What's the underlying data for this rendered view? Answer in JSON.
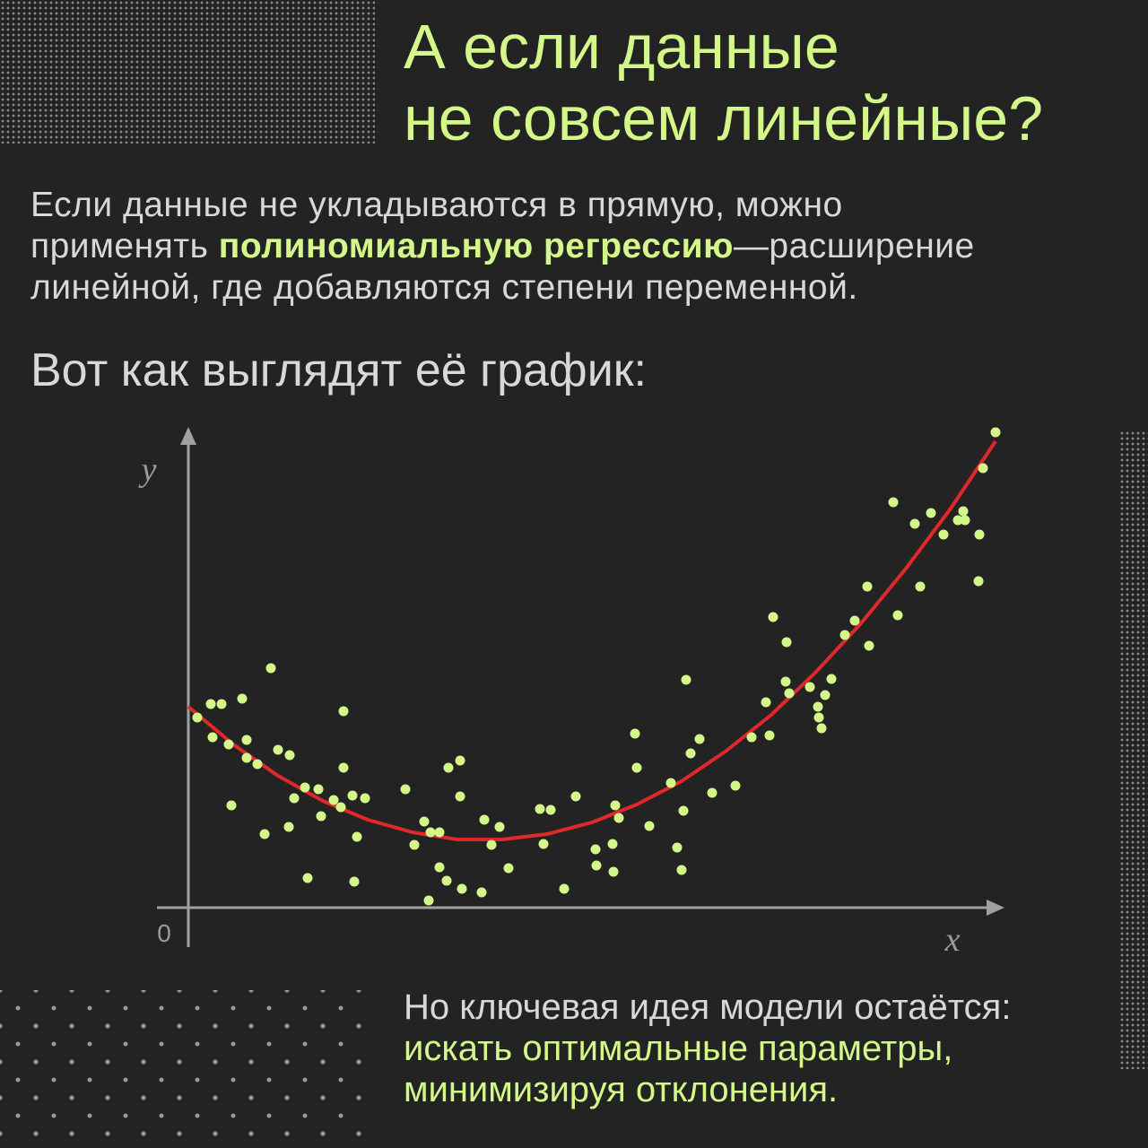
{
  "header": {
    "title_lines": [
      "А если данные",
      "не совсем линейные?"
    ]
  },
  "intro": {
    "lines": [
      [
        {
          "text": "Если данные не укладываются в прямую, можно"
        }
      ],
      [
        {
          "text": "применять "
        },
        {
          "text": "полиномиальную регрессию",
          "highlight": true
        },
        {
          "text": "—расширение"
        }
      ],
      [
        {
          "text": "линейной, где добавляются степени переменной."
        }
      ]
    ]
  },
  "subheading": "Вот как выглядят её график:",
  "chart_data": {
    "type": "scatter",
    "xlabel": "x",
    "ylabel": "y",
    "xlim": [
      0,
      90.8
    ],
    "ylim": [
      0,
      53.4
    ],
    "xticks": [
      0
    ],
    "series": [
      {
        "type": "line",
        "color": "#e0282b",
        "x": [
          0,
          5,
          10,
          15,
          20,
          25,
          30,
          35,
          40,
          45,
          50,
          55,
          60,
          65,
          70,
          75,
          80,
          85,
          90
        ],
        "values": [
          22.4,
          18.2,
          14.7,
          11.9,
          9.8,
          8.4,
          7.6,
          7.6,
          8.2,
          9.5,
          11.5,
          14.1,
          17.5,
          21.5,
          26.3,
          31.7,
          37.8,
          44.5,
          52.0
        ]
      },
      {
        "type": "scatter",
        "color": "#d4f78a",
        "x": [
          1.0,
          2.5,
          3.7,
          6.0,
          9.2,
          2.7,
          4.5,
          6.5,
          6.5,
          7.7,
          10.0,
          11.3,
          4.8,
          8.5,
          11.2,
          11.8,
          13.0,
          14.5,
          14.8,
          13.3,
          16.2,
          17.0,
          17.3,
          17.3,
          18.3,
          19.7,
          18.8,
          18.5,
          24.2,
          25.2,
          26.3,
          27.0,
          28.0,
          28.0,
          26.8,
          28.8,
          29.0,
          30.3,
          30.3,
          30.5,
          32.7,
          33.0,
          33.8,
          34.7,
          35.7,
          39.2,
          40.4,
          39.6,
          41.9,
          43.2,
          45.4,
          45.5,
          47.3,
          47.4,
          47.6,
          48.0,
          49.8,
          50.0,
          51.4,
          53.8,
          54.5,
          55.0,
          55.2,
          55.5,
          56.0,
          57.0,
          58.4,
          61.0,
          62.8,
          64.4,
          64.8,
          65.2,
          66.6,
          66.7,
          67.0,
          69.3,
          70.2,
          70.3,
          70.6,
          71.0,
          71.7,
          73.2,
          74.3,
          75.7,
          75.9,
          78.6,
          79.1,
          81.0,
          81.6,
          82.8,
          84.2,
          85.8,
          86.4,
          86.6,
          88.2,
          88.1,
          88.6,
          90.0
        ],
        "values": [
          21.2,
          22.7,
          22.7,
          23.3,
          26.7,
          19.0,
          18.2,
          18.7,
          16.7,
          16.0,
          17.6,
          17.0,
          11.4,
          8.2,
          9.0,
          12.2,
          13.4,
          13.2,
          10.2,
          3.3,
          12.0,
          11.2,
          21.9,
          15.6,
          12.5,
          12.2,
          7.9,
          2.9,
          13.2,
          7.0,
          9.6,
          8.4,
          8.4,
          4.5,
          0.8,
          3.0,
          15.6,
          16.4,
          12.4,
          2.1,
          1.7,
          9.8,
          7.0,
          9.0,
          4.4,
          11.0,
          10.9,
          7.1,
          2.1,
          12.4,
          6.5,
          4.7,
          7.1,
          4.0,
          11.4,
          10.0,
          19.4,
          15.6,
          9.1,
          13.9,
          6.7,
          4.2,
          10.8,
          25.4,
          17.2,
          18.8,
          12.8,
          13.6,
          19.0,
          22.9,
          19.2,
          32.4,
          25.2,
          29.6,
          23.9,
          24.6,
          22.4,
          21.2,
          20.0,
          23.7,
          25.5,
          30.4,
          32.0,
          35.8,
          29.2,
          45.2,
          32.6,
          42.8,
          35.8,
          44.0,
          41.6,
          43.2,
          44.2,
          43.2,
          41.6,
          36.4,
          49.0,
          53.0
        ]
      }
    ]
  },
  "footer": {
    "lines": [
      [
        {
          "text": "Но ключевая идея модели остаётся:"
        }
      ],
      [
        {
          "text": "искать оптимальные параметры,",
          "highlight": true
        }
      ],
      [
        {
          "text": "минимизируя отклонения.",
          "highlight": true
        }
      ]
    ]
  }
}
